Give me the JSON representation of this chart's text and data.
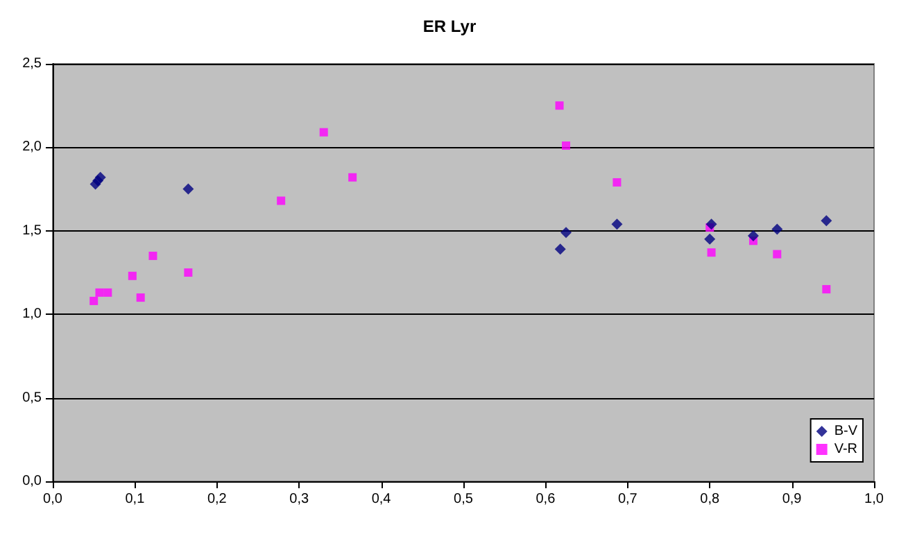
{
  "chart_data": {
    "type": "scatter",
    "title": "ER Lyr",
    "series": [
      {
        "name": "B-V",
        "color": "#000080",
        "marker": "diamond",
        "x": [
          0.052,
          0.055,
          0.058,
          0.165,
          0.618,
          0.625,
          0.687,
          0.8,
          0.802,
          0.853,
          0.882,
          0.942
        ],
        "values": [
          1.78,
          1.8,
          1.82,
          1.75,
          1.39,
          1.49,
          1.54,
          1.45,
          1.54,
          1.47,
          1.51,
          1.56
        ]
      },
      {
        "name": "V-R",
        "color": "#ff00ff",
        "marker": "square",
        "x": [
          0.05,
          0.057,
          0.067,
          0.097,
          0.107,
          0.122,
          0.165,
          0.278,
          0.33,
          0.365,
          0.617,
          0.625,
          0.687,
          0.8,
          0.802,
          0.853,
          0.882,
          0.942
        ],
        "values": [
          1.08,
          1.13,
          1.13,
          1.23,
          1.1,
          1.35,
          1.25,
          1.68,
          2.09,
          1.82,
          2.25,
          2.01,
          1.79,
          1.52,
          1.37,
          1.44,
          1.36,
          1.15
        ]
      }
    ],
    "xlim": [
      0,
      1
    ],
    "xticks": [
      {
        "value": 0,
        "label": "0,0"
      },
      {
        "value": 0.1,
        "label": "0,1"
      },
      {
        "value": 0.2,
        "label": "0,2"
      },
      {
        "value": 0.3,
        "label": "0,3"
      },
      {
        "value": 0.4,
        "label": "0,4"
      },
      {
        "value": 0.5,
        "label": "0,5"
      },
      {
        "value": 0.6,
        "label": "0,6"
      },
      {
        "value": 0.7,
        "label": "0,7"
      },
      {
        "value": 0.8,
        "label": "0,8"
      },
      {
        "value": 0.9,
        "label": "0,9"
      },
      {
        "value": 1,
        "label": "1,0"
      }
    ],
    "ylim": [
      0,
      2.5
    ],
    "yticks": [
      {
        "value": 0,
        "label": "0,0"
      },
      {
        "value": 0.5,
        "label": "0,5"
      },
      {
        "value": 1,
        "label": "1,0"
      },
      {
        "value": 1.5,
        "label": "1,5"
      },
      {
        "value": 2,
        "label": "2,0"
      },
      {
        "value": 2.5,
        "label": "2,5"
      }
    ],
    "grid": "y",
    "legend": "bottom right"
  }
}
